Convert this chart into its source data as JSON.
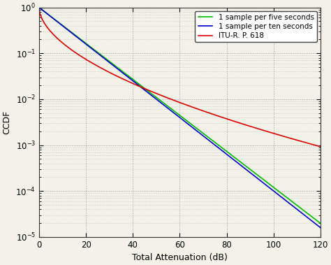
{
  "title": "",
  "xlabel": "Total Attenuation (dB)",
  "ylabel": "CCDF",
  "xlim": [
    0,
    120
  ],
  "ylim": [
    1e-05,
    1.2
  ],
  "legend_entries": [
    "1 sample per five seconds",
    "1 sample per ten seconds",
    "ITU-R. P. 618"
  ],
  "line_colors": [
    "#00bb00",
    "#0000cc",
    "#dd0000"
  ],
  "background_color": "#f2f2e8",
  "grid_color": "#888888",
  "x_ticks": [
    0,
    20,
    40,
    60,
    80,
    100,
    120
  ],
  "y_ticks_major": [
    -4,
    -3,
    -2,
    -1,
    0
  ]
}
